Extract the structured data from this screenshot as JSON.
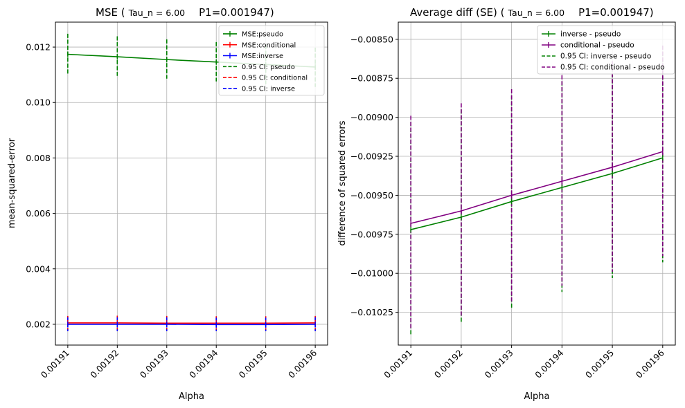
{
  "colors": {
    "pseudo": "#008000",
    "conditional": "#ff0000",
    "inverse": "#0000ff",
    "purple": "#800080",
    "grid": "#b0b0b0"
  },
  "chart_data": [
    {
      "type": "line",
      "title_main": "MSE (",
      "title_tau": "Tau_n = 6.00",
      "title_p1": "P1=0.001947)",
      "xlabel": "Alpha",
      "ylabel": "mean-squared-error",
      "x": [
        0.00191,
        0.00192,
        0.00193,
        0.00194,
        0.00195,
        0.00196
      ],
      "x_tick_labels": [
        "0.00191",
        "0.00192",
        "0.00193",
        "0.00194",
        "0.00195",
        "0.00196"
      ],
      "xlim": [
        0.0019075,
        0.0019625
      ],
      "ylim": [
        0.00125,
        0.0129
      ],
      "y_ticks": [
        0.002,
        0.004,
        0.006,
        0.008,
        0.01,
        0.012
      ],
      "y_tick_labels": [
        "0.002",
        "0.004",
        "0.006",
        "0.008",
        "0.010",
        "0.012"
      ],
      "grid": true,
      "legend_position": "top-right",
      "series": [
        {
          "name": "MSE:pseudo",
          "color_key": "pseudo",
          "values": [
            0.01174,
            0.01165,
            0.01155,
            0.01146,
            0.01137,
            0.01128
          ]
        },
        {
          "name": "MSE:conditional",
          "color_key": "conditional",
          "values": [
            0.00205,
            0.00205,
            0.00204,
            0.00204,
            0.00204,
            0.00205
          ]
        },
        {
          "name": "MSE:inverse",
          "color_key": "inverse",
          "values": [
            0.002,
            0.002,
            0.002,
            0.00199,
            0.00199,
            0.002
          ]
        }
      ],
      "ci": [
        {
          "name": "0.95 CI: pseudo",
          "color_key": "pseudo",
          "lower": [
            0.011,
            0.01096,
            0.01086,
            0.01076,
            0.01066,
            0.01056
          ],
          "upper": [
            0.01248,
            0.01239,
            0.01228,
            0.01218,
            0.01208,
            0.01198
          ]
        },
        {
          "name": "0.95 CI: conditional",
          "color_key": "conditional",
          "lower": [
            0.00179,
            0.00178,
            0.00178,
            0.00178,
            0.00178,
            0.00178
          ],
          "upper": [
            0.0023,
            0.00231,
            0.0023,
            0.00229,
            0.00229,
            0.0023
          ]
        },
        {
          "name": "0.95 CI: inverse",
          "color_key": "inverse",
          "lower": [
            0.00175,
            0.00175,
            0.00175,
            0.00175,
            0.00175,
            0.00175
          ],
          "upper": [
            0.00225,
            0.00225,
            0.00225,
            0.00224,
            0.00224,
            0.00225
          ]
        }
      ]
    },
    {
      "type": "line",
      "title_main": "Average diff (SE) (",
      "title_tau": "Tau_n = 6.00",
      "title_p1": "P1=0.001947)",
      "xlabel": "Alpha",
      "ylabel": "difference of squared errors",
      "x": [
        0.00191,
        0.00192,
        0.00193,
        0.00194,
        0.00195,
        0.00196
      ],
      "x_tick_labels": [
        "0.00191",
        "0.00192",
        "0.00193",
        "0.00194",
        "0.00195",
        "0.00196"
      ],
      "xlim": [
        0.0019075,
        0.0019625
      ],
      "ylim": [
        -0.01046,
        -0.00839
      ],
      "y_ticks": [
        -0.01025,
        -0.01,
        -0.00975,
        -0.0095,
        -0.00925,
        -0.009,
        -0.00875,
        -0.0085
      ],
      "y_tick_labels": [
        "−0.01025",
        "−0.01000",
        "−0.00975",
        "−0.00950",
        "−0.00925",
        "−0.00900",
        "−0.00875",
        "−0.00850"
      ],
      "grid": true,
      "legend_position": "top-right",
      "series": [
        {
          "name": "inverse - pseudo",
          "color_key": "pseudo",
          "values": [
            -0.00972,
            -0.00964,
            -0.00954,
            -0.00945,
            -0.00936,
            -0.00926
          ]
        },
        {
          "name": "conditional - pseudo",
          "color_key": "purple",
          "values": [
            -0.00968,
            -0.0096,
            -0.0095,
            -0.00941,
            -0.00932,
            -0.00922
          ]
        }
      ],
      "ci": [
        {
          "name": "0.95 CI: inverse - pseudo",
          "color_key": "pseudo",
          "lower": [
            -0.0104,
            -0.01032,
            -0.01022,
            -0.01012,
            -0.01003,
            -0.00993
          ],
          "upper": [
            -0.00903,
            -0.00895,
            -0.00886,
            -0.00877,
            -0.00868,
            -0.00858
          ]
        },
        {
          "name": "0.95 CI: conditional - pseudo",
          "color_key": "purple",
          "lower": [
            -0.01036,
            -0.01028,
            -0.01018,
            -0.01008,
            -0.00999,
            -0.00989
          ],
          "upper": [
            -0.00899,
            -0.00891,
            -0.00882,
            -0.00873,
            -0.00864,
            -0.00854
          ]
        }
      ]
    }
  ]
}
